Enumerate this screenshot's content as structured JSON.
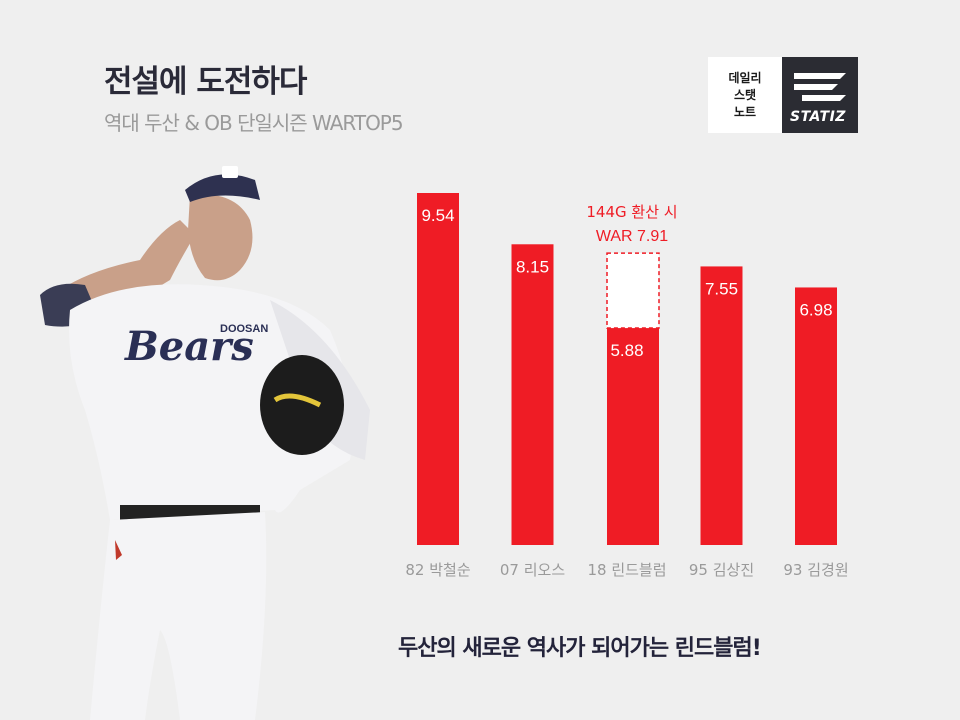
{
  "header": {
    "title": "전설에 도전하다",
    "subtitle": "역대 두산 & OB 단일시즌 WARTOP5"
  },
  "logo": {
    "line1": "데일리",
    "line2": "스탯",
    "line3": "노트",
    "brand": "STATIZ",
    "icon": "statiz-logo-icon"
  },
  "player_image": {
    "icon": "pitcher-photo",
    "team_text": "Bears",
    "team_sub": "DOOSAN"
  },
  "tagline": "두산의 새로운 역사가 되어가는 린드블럼!",
  "colors": {
    "bar": "#ef1c25",
    "background": "#efefef",
    "text_dark": "#2a2a38",
    "text_gray": "#9a9a9a"
  },
  "chart_data": {
    "type": "bar",
    "categories": [
      "82 박철순",
      "07 리오스",
      "18 린드블럼",
      "95 김상진",
      "93 김경원"
    ],
    "values": [
      9.54,
      8.15,
      5.88,
      7.55,
      6.98
    ],
    "value_labels": [
      "9.54",
      "8.15",
      "5.88",
      "7.55",
      "6.98"
    ],
    "ylim": [
      0,
      9.54
    ],
    "projection": {
      "category_index": 2,
      "value": 7.91,
      "label_line1": "144G 환산 시",
      "label_line2": "WAR 7.91"
    }
  }
}
